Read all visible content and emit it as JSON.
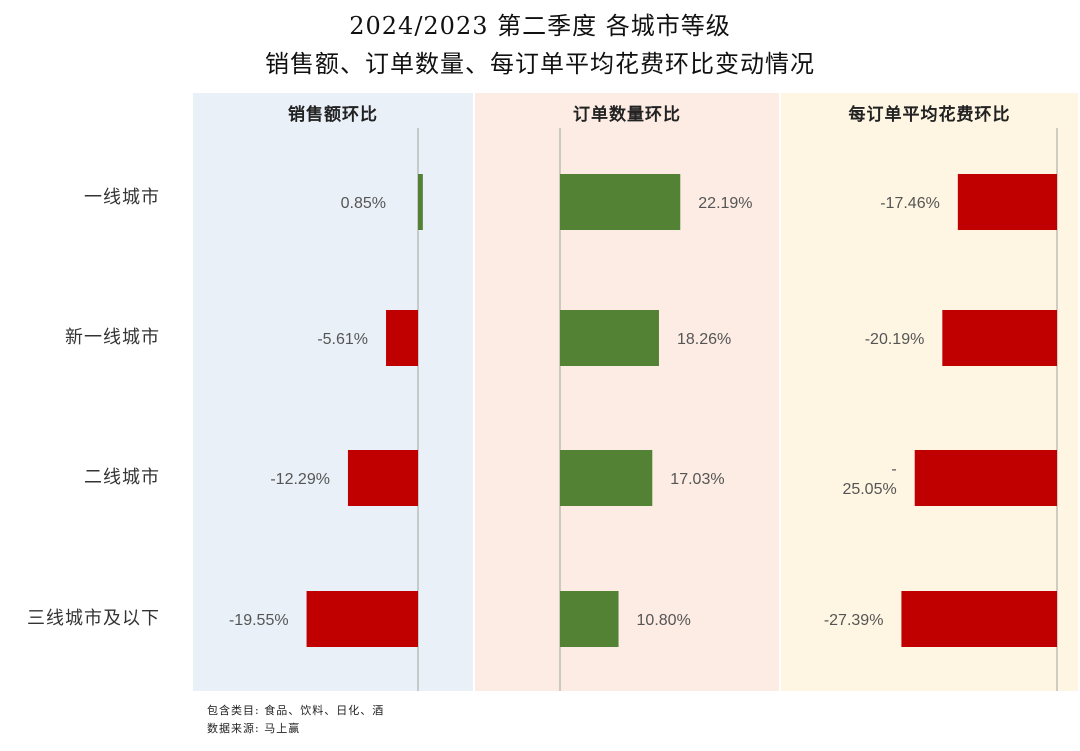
{
  "title_line1": "2024/2023 第二季度 各城市等级",
  "title_line2": "销售额、订单数量、每订单平均花费环比变动情况",
  "notes": {
    "category": "包含类目: 食品、饮料、日化、酒",
    "source": "数据来源: 马上赢"
  },
  "colors": {
    "positive": "#548235",
    "negative": "#c00000",
    "panel_1_bg": "#e9f0f8",
    "panel_2_bg": "#fcece4",
    "panel_3_bg": "#fef6e2",
    "axis": "#b0b0b0"
  },
  "chart_data": {
    "type": "bar",
    "orientation": "horizontal",
    "categories": [
      "一线城市",
      "新一线城市",
      "二线城市",
      "三线城市及以下"
    ],
    "unit": "%",
    "grid": false,
    "panels": [
      {
        "name": "销售额环比",
        "values": [
          0.85,
          -5.61,
          -12.29,
          -19.55
        ],
        "labels": [
          "0.85%",
          "-5.61%",
          "-12.29%",
          "-19.55%"
        ]
      },
      {
        "name": "订单数量环比",
        "values": [
          22.19,
          18.26,
          17.03,
          10.8
        ],
        "labels": [
          "22.19%",
          "18.26%",
          "17.03%",
          "10.80%"
        ]
      },
      {
        "name": "每订单平均花费环比",
        "values": [
          -17.46,
          -20.19,
          -25.05,
          -27.39
        ],
        "labels": [
          "-17.46%",
          "-20.19%",
          "-\n25.05%",
          "-27.39%"
        ]
      }
    ]
  }
}
